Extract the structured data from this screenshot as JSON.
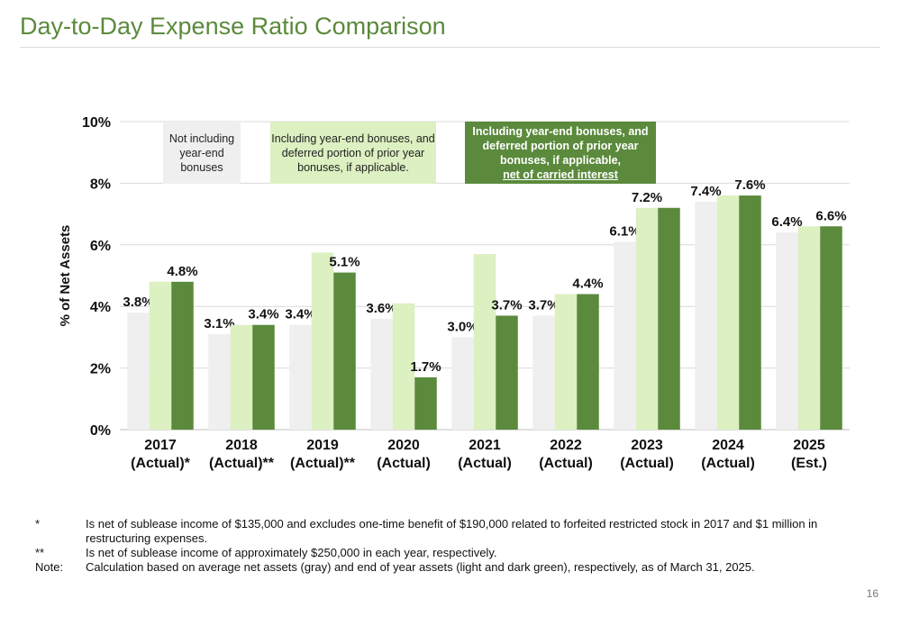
{
  "header": {
    "title": "Day-to-Day Expense Ratio Comparison"
  },
  "legend_boxes": {
    "gray": "Not including year-end bonuses",
    "light": "Including year-end bonuses, and deferred portion of prior year bonuses, if applicable.",
    "dark_main": "Including year-end bonuses, and deferred portion of prior year bonuses, if applicable,",
    "dark_underlined": "net of carried interest"
  },
  "chart_data": {
    "type": "bar",
    "ylabel": "% of Net Assets",
    "xlabel": "",
    "ylim": [
      0,
      10
    ],
    "yticks": [
      "0%",
      "2%",
      "4%",
      "6%",
      "8%",
      "10%"
    ],
    "categories": [
      [
        "2017",
        "(Actual)*"
      ],
      [
        "2018",
        "(Actual)**"
      ],
      [
        "2019",
        "(Actual)**"
      ],
      [
        "2020",
        "(Actual)"
      ],
      [
        "2021",
        "(Actual)"
      ],
      [
        "2022",
        "(Actual)"
      ],
      [
        "2023",
        "(Actual)"
      ],
      [
        "2024",
        "(Actual)"
      ],
      [
        "2025",
        "(Est.)"
      ]
    ],
    "series": [
      {
        "key": "gray",
        "values": [
          3.8,
          3.1,
          3.4,
          3.6,
          3.0,
          3.7,
          6.1,
          7.4,
          6.4
        ],
        "labels": [
          "3.8%",
          "3.1%",
          "3.4%",
          "3.6%",
          "3.0%",
          "3.7%",
          "6.1%",
          "7.4%",
          "6.4%"
        ]
      },
      {
        "key": "light",
        "values": [
          4.8,
          3.4,
          5.75,
          4.1,
          5.7,
          4.4,
          7.2,
          7.6,
          6.6
        ],
        "labels": [
          null,
          null,
          null,
          null,
          null,
          null,
          "7.2%",
          null,
          null
        ]
      },
      {
        "key": "dark",
        "values": [
          4.8,
          3.4,
          5.1,
          1.7,
          3.7,
          4.4,
          7.2,
          7.6,
          6.6
        ],
        "labels": [
          "4.8%",
          "3.4%",
          "5.1%",
          "1.7%",
          "3.7%",
          "4.4%",
          null,
          "7.6%",
          "6.6%"
        ]
      }
    ],
    "colors": {
      "gray": "#efefef",
      "light": "#dcf0c1",
      "dark": "#5b8a3c",
      "grid": "#d9d9d9"
    },
    "grid": true
  },
  "footnotes": [
    {
      "mark": "*",
      "text": "Is net of sublease income of $135,000 and excludes one-time benefit of $190,000 related to forfeited restricted stock in 2017 and $1 million in restructuring expenses."
    },
    {
      "mark": "**",
      "text": "Is net of sublease income of approximately $250,000 in each year, respectively."
    },
    {
      "mark": "Note:",
      "text": "Calculation based on average net assets (gray) and end of year assets (light and dark green), respectively, as of March 31, 2025."
    }
  ],
  "page_number": "16"
}
